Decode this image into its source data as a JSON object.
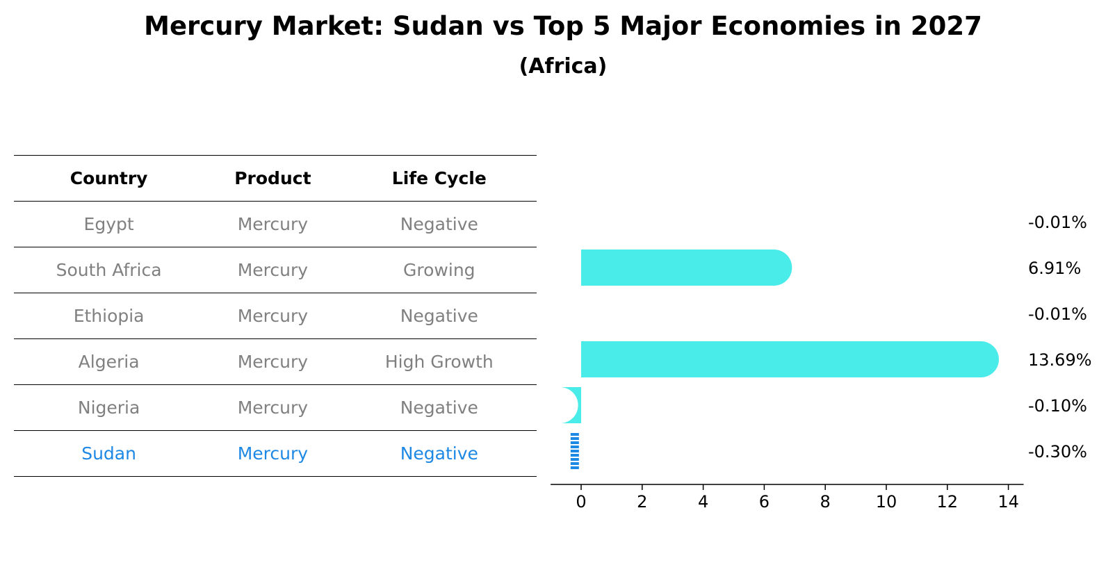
{
  "title": "Mercury Market: Sudan vs Top 5 Major Economies in 2027",
  "subtitle": "(Africa)",
  "table": {
    "headers": [
      "Country",
      "Product",
      "Life Cycle"
    ],
    "rows": [
      [
        "Egypt",
        "Mercury",
        "Negative"
      ],
      [
        "South Africa",
        "Mercury",
        "Growing"
      ],
      [
        "Ethiopia",
        "Mercury",
        "Negative"
      ],
      [
        "Algeria",
        "Mercury",
        "High Growth"
      ],
      [
        "Nigeria",
        "Mercury",
        "Negative"
      ],
      [
        "Sudan",
        "Mercury",
        "Negative"
      ]
    ],
    "highlight_row": "Sudan"
  },
  "colors": {
    "bar": "#4aecea",
    "highlight": "#1e88e5",
    "muted_text": "#808080"
  },
  "chart_data": {
    "type": "bar",
    "orientation": "horizontal",
    "categories": [
      "Egypt",
      "South Africa",
      "Ethiopia",
      "Algeria",
      "Nigeria",
      "Sudan"
    ],
    "values": [
      -0.01,
      6.91,
      -0.01,
      13.69,
      -0.1,
      -0.3
    ],
    "value_labels": [
      "-0.01%",
      "6.91%",
      "-0.01%",
      "13.69%",
      "-0.10%",
      "-0.30%"
    ],
    "xticks": [
      "0",
      "2",
      "4",
      "6",
      "8",
      "10",
      "12",
      "14"
    ],
    "xlim": [
      -1,
      14.5
    ],
    "highlight_category": "Sudan"
  }
}
